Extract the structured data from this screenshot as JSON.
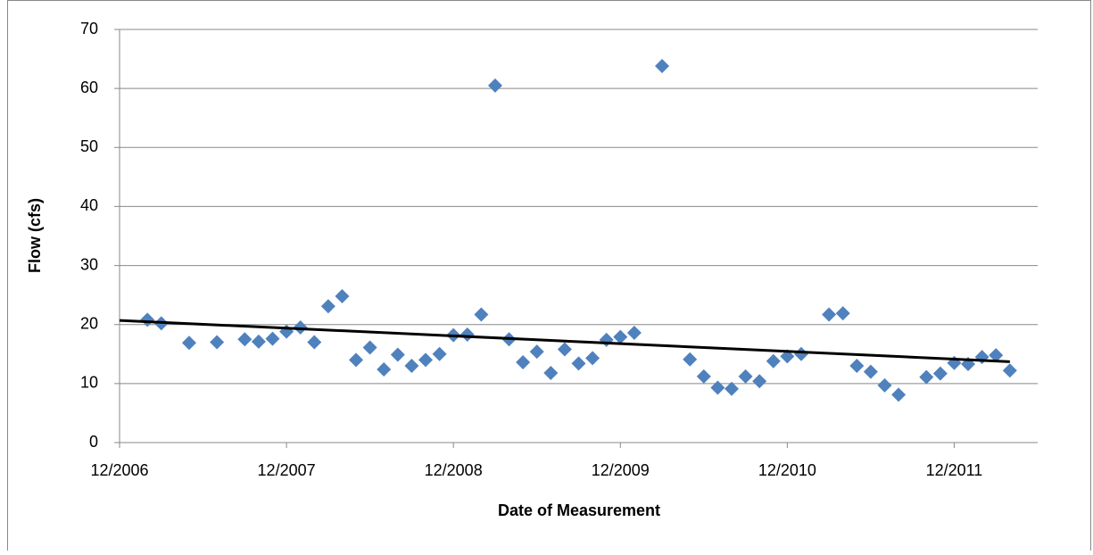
{
  "chart_data": {
    "type": "scatter",
    "x_label": "Date of Measurement",
    "y_label": "Flow (cfs)",
    "xlim": [
      "2006-12",
      "2012-06"
    ],
    "xticks": [
      {
        "value": "2006-12",
        "label": "12/2006"
      },
      {
        "value": "2007-12",
        "label": "12/2007"
      },
      {
        "value": "2008-12",
        "label": "12/2008"
      },
      {
        "value": "2009-12",
        "label": "12/2009"
      },
      {
        "value": "2010-12",
        "label": "12/2010"
      },
      {
        "value": "2011-12",
        "label": "12/2011"
      }
    ],
    "ylim": [
      0,
      70
    ],
    "yticks": [
      0,
      10,
      20,
      30,
      40,
      50,
      60,
      70
    ],
    "grid": true,
    "color": "#4f81bd",
    "x": [
      "2007-02",
      "2007-03",
      "2007-05",
      "2007-07",
      "2007-09",
      "2007-10",
      "2007-11",
      "2007-12",
      "2008-01",
      "2008-02",
      "2008-03",
      "2008-04",
      "2008-05",
      "2008-06",
      "2008-07",
      "2008-08",
      "2008-09",
      "2008-10",
      "2008-11",
      "2008-12",
      "2009-01",
      "2009-02",
      "2009-03",
      "2009-04",
      "2009-05",
      "2009-06",
      "2009-07",
      "2009-08",
      "2009-09",
      "2009-10",
      "2009-11",
      "2009-12",
      "2010-01",
      "2010-03",
      "2010-05",
      "2010-06",
      "2010-07",
      "2010-08",
      "2010-09",
      "2010-10",
      "2010-11",
      "2010-12",
      "2011-01",
      "2011-03",
      "2011-04",
      "2011-05",
      "2011-06",
      "2011-07",
      "2011-08",
      "2011-10",
      "2011-11",
      "2011-12",
      "2012-01",
      "2012-02",
      "2012-03",
      "2012-04"
    ],
    "values": [
      20.8,
      20.2,
      16.9,
      17.0,
      17.5,
      17.1,
      17.6,
      18.8,
      19.5,
      17.0,
      23.1,
      24.8,
      14.0,
      16.1,
      12.4,
      14.9,
      13.0,
      14.0,
      15.0,
      18.2,
      18.3,
      21.7,
      60.5,
      17.5,
      13.6,
      15.4,
      11.8,
      15.8,
      13.4,
      14.3,
      17.4,
      17.9,
      18.6,
      63.8,
      14.1,
      11.2,
      9.3,
      9.1,
      11.2,
      10.4,
      13.8,
      14.6,
      15.0,
      21.7,
      21.9,
      13.0,
      12.0,
      9.7,
      8.1,
      11.1,
      11.7,
      13.5,
      13.3,
      14.5,
      14.8,
      12.2
    ],
    "trendline": {
      "x": [
        "2006-12",
        "2012-04"
      ],
      "values": [
        20.7,
        13.7
      ],
      "color": "#000000"
    }
  }
}
